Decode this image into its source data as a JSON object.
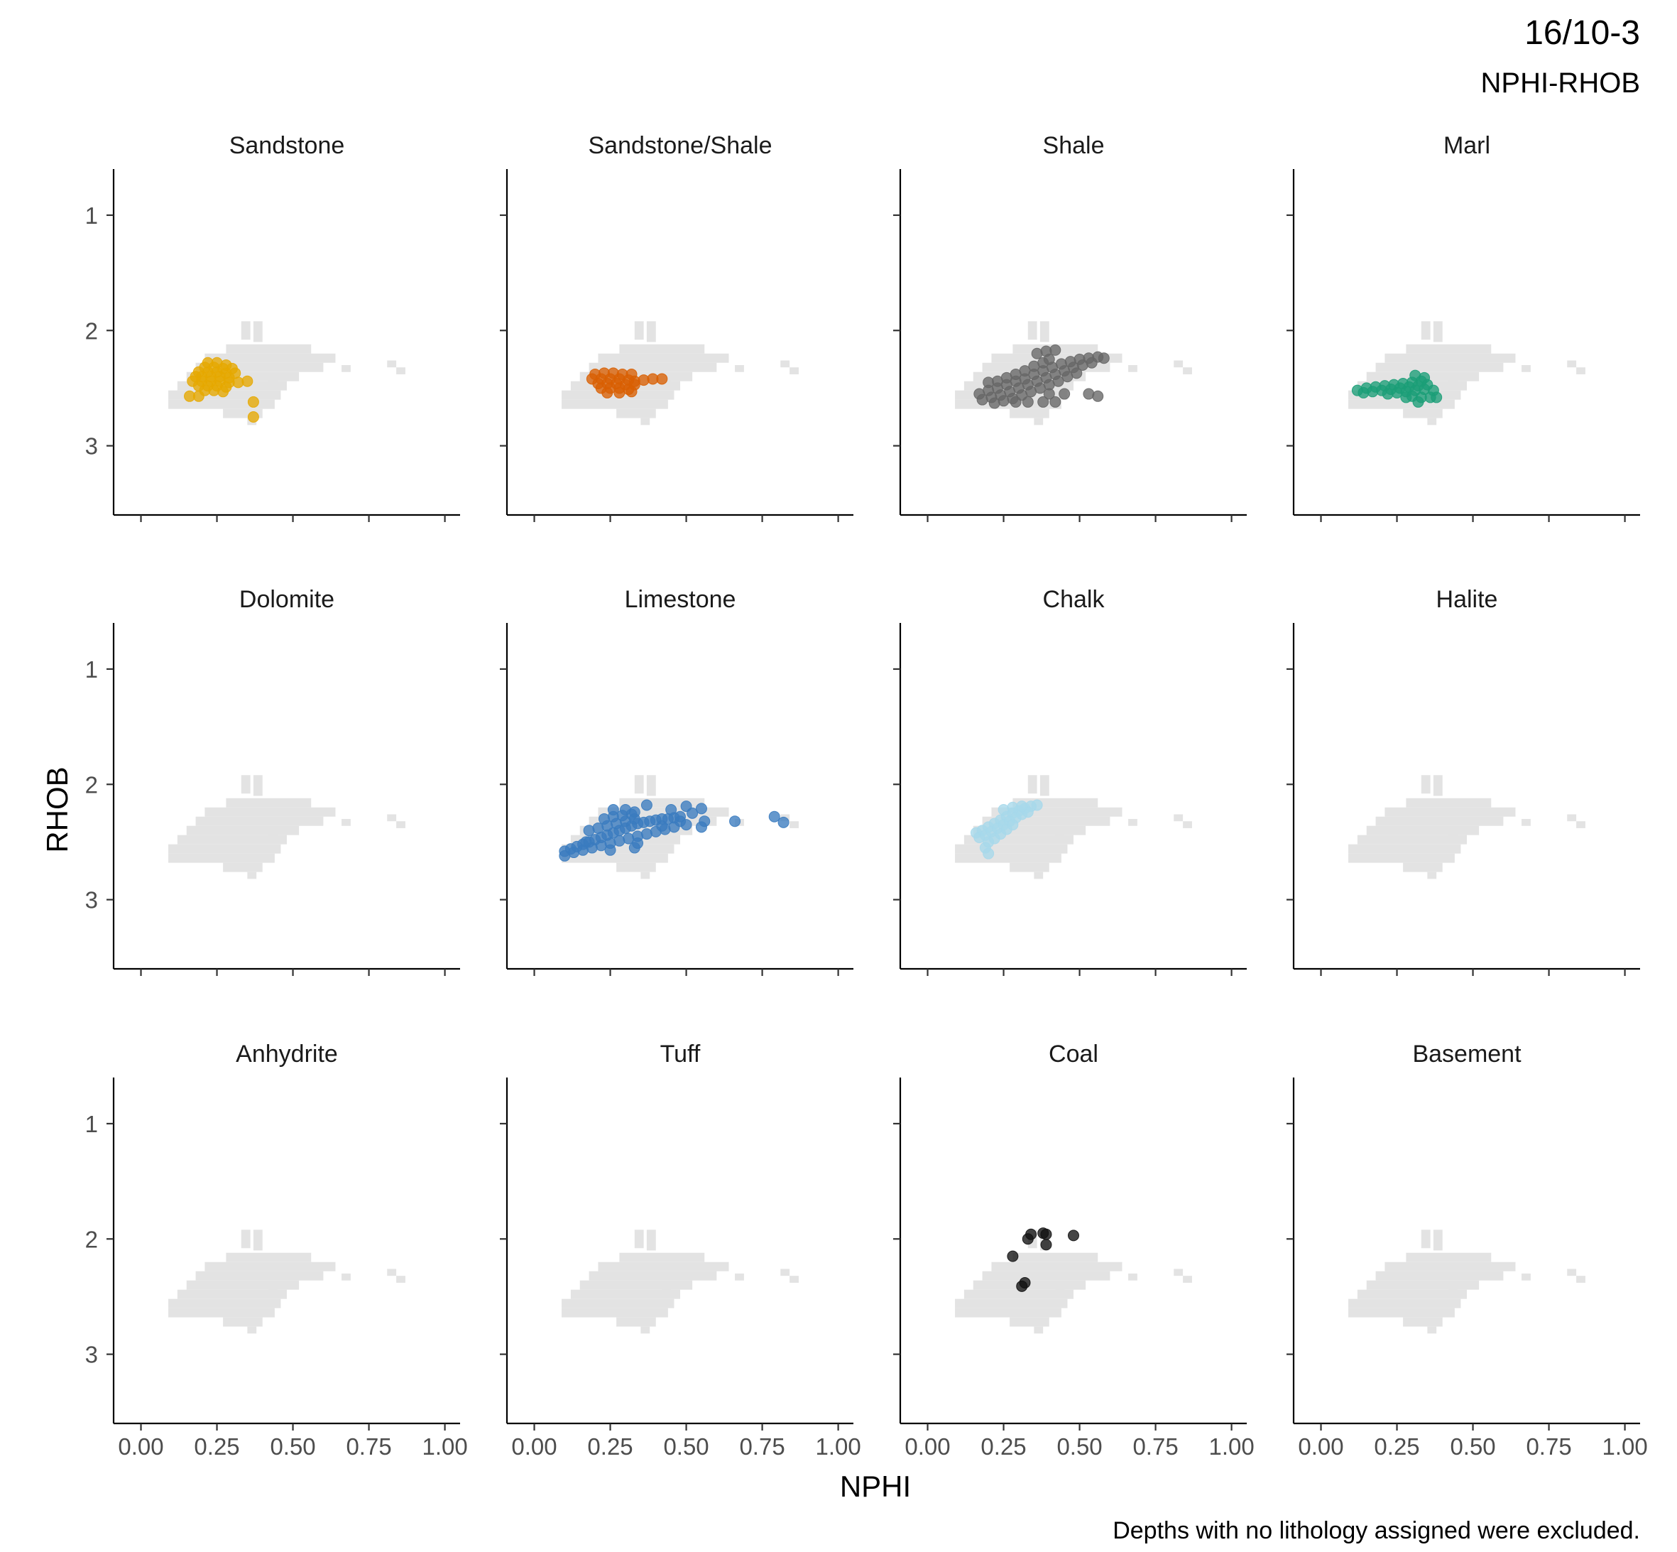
{
  "chart_data": {
    "type": "scatter",
    "title": "16/10-3",
    "subtitle": "NPHI-RHOB",
    "caption": "Depths with no lithology assigned were excluded.",
    "xlabel": "NPHI",
    "ylabel": "RHOB",
    "xlim": [
      -0.09,
      1.05
    ],
    "ylim": [
      3.6,
      0.6
    ],
    "y_reversed": true,
    "x_ticks": [
      0.0,
      0.25,
      0.5,
      0.75,
      1.0
    ],
    "x_tick_labels": [
      "0.00",
      "0.25",
      "0.50",
      "0.75",
      "1.00"
    ],
    "y_ticks": [
      1,
      2,
      3
    ],
    "y_tick_labels": [
      "1",
      "2",
      "3"
    ],
    "grid": false,
    "facets": {
      "rows": 3,
      "cols": 4
    },
    "background_color": "#e3e3e3",
    "background_cloud": {
      "cells": [
        {
          "x": [
            0.33,
            0.36
          ],
          "y": [
            1.92,
            2.08
          ]
        },
        {
          "x": [
            0.37,
            0.4
          ],
          "y": [
            1.92,
            2.1
          ]
        },
        {
          "x": [
            0.28,
            0.56
          ],
          "y": [
            2.12,
            2.2
          ]
        },
        {
          "x": [
            0.21,
            0.64
          ],
          "y": [
            2.2,
            2.28
          ]
        },
        {
          "x": [
            0.18,
            0.6
          ],
          "y": [
            2.28,
            2.36
          ]
        },
        {
          "x": [
            0.15,
            0.52
          ],
          "y": [
            2.36,
            2.44
          ]
        },
        {
          "x": [
            0.12,
            0.48
          ],
          "y": [
            2.44,
            2.52
          ]
        },
        {
          "x": [
            0.09,
            0.46
          ],
          "y": [
            2.52,
            2.6
          ]
        },
        {
          "x": [
            0.09,
            0.44
          ],
          "y": [
            2.6,
            2.68
          ]
        },
        {
          "x": [
            0.27,
            0.4
          ],
          "y": [
            2.68,
            2.76
          ]
        },
        {
          "x": [
            0.35,
            0.38
          ],
          "y": [
            2.76,
            2.82
          ]
        },
        {
          "x": [
            0.42,
            0.45
          ],
          "y": [
            2.42,
            2.48
          ]
        },
        {
          "x": [
            0.66,
            0.69
          ],
          "y": [
            2.3,
            2.36
          ]
        },
        {
          "x": [
            0.81,
            0.84
          ],
          "y": [
            2.26,
            2.32
          ]
        },
        {
          "x": [
            0.84,
            0.87
          ],
          "y": [
            2.32,
            2.38
          ]
        }
      ]
    },
    "panels": [
      {
        "name": "Sandstone",
        "color": "#E6A800",
        "points": [
          [
            0.22,
            2.28
          ],
          [
            0.25,
            2.28
          ],
          [
            0.28,
            2.3
          ],
          [
            0.21,
            2.32
          ],
          [
            0.24,
            2.32
          ],
          [
            0.27,
            2.33
          ],
          [
            0.3,
            2.33
          ],
          [
            0.19,
            2.36
          ],
          [
            0.22,
            2.36
          ],
          [
            0.25,
            2.36
          ],
          [
            0.28,
            2.37
          ],
          [
            0.31,
            2.37
          ],
          [
            0.18,
            2.4
          ],
          [
            0.2,
            2.4
          ],
          [
            0.23,
            2.4
          ],
          [
            0.26,
            2.4
          ],
          [
            0.29,
            2.41
          ],
          [
            0.17,
            2.44
          ],
          [
            0.2,
            2.44
          ],
          [
            0.23,
            2.44
          ],
          [
            0.26,
            2.44
          ],
          [
            0.29,
            2.45
          ],
          [
            0.32,
            2.45
          ],
          [
            0.35,
            2.44
          ],
          [
            0.19,
            2.48
          ],
          [
            0.22,
            2.48
          ],
          [
            0.25,
            2.48
          ],
          [
            0.28,
            2.49
          ],
          [
            0.21,
            2.52
          ],
          [
            0.24,
            2.52
          ],
          [
            0.27,
            2.53
          ],
          [
            0.16,
            2.57
          ],
          [
            0.19,
            2.57
          ],
          [
            0.37,
            2.62
          ],
          [
            0.37,
            2.75
          ]
        ]
      },
      {
        "name": "Sandstone/Shale",
        "color": "#D95F02",
        "points": [
          [
            0.2,
            2.38
          ],
          [
            0.23,
            2.37
          ],
          [
            0.26,
            2.37
          ],
          [
            0.29,
            2.38
          ],
          [
            0.32,
            2.38
          ],
          [
            0.19,
            2.42
          ],
          [
            0.22,
            2.42
          ],
          [
            0.25,
            2.42
          ],
          [
            0.28,
            2.42
          ],
          [
            0.31,
            2.43
          ],
          [
            0.33,
            2.44
          ],
          [
            0.21,
            2.46
          ],
          [
            0.24,
            2.46
          ],
          [
            0.27,
            2.46
          ],
          [
            0.3,
            2.47
          ],
          [
            0.33,
            2.47
          ],
          [
            0.22,
            2.5
          ],
          [
            0.25,
            2.5
          ],
          [
            0.28,
            2.5
          ],
          [
            0.31,
            2.51
          ],
          [
            0.24,
            2.54
          ],
          [
            0.28,
            2.54
          ],
          [
            0.32,
            2.53
          ],
          [
            0.36,
            2.43
          ],
          [
            0.39,
            2.42
          ],
          [
            0.42,
            2.42
          ]
        ]
      },
      {
        "name": "Shale",
        "color": "#666666",
        "points": [
          [
            0.17,
            2.55
          ],
          [
            0.2,
            2.52
          ],
          [
            0.23,
            2.5
          ],
          [
            0.26,
            2.47
          ],
          [
            0.29,
            2.44
          ],
          [
            0.32,
            2.42
          ],
          [
            0.35,
            2.38
          ],
          [
            0.38,
            2.35
          ],
          [
            0.41,
            2.32
          ],
          [
            0.44,
            2.29
          ],
          [
            0.47,
            2.27
          ],
          [
            0.5,
            2.25
          ],
          [
            0.53,
            2.24
          ],
          [
            0.56,
            2.23
          ],
          [
            0.58,
            2.24
          ],
          [
            0.18,
            2.6
          ],
          [
            0.21,
            2.58
          ],
          [
            0.24,
            2.56
          ],
          [
            0.27,
            2.53
          ],
          [
            0.3,
            2.5
          ],
          [
            0.33,
            2.47
          ],
          [
            0.36,
            2.44
          ],
          [
            0.39,
            2.41
          ],
          [
            0.42,
            2.38
          ],
          [
            0.45,
            2.35
          ],
          [
            0.48,
            2.32
          ],
          [
            0.51,
            2.3
          ],
          [
            0.54,
            2.28
          ],
          [
            0.22,
            2.63
          ],
          [
            0.25,
            2.61
          ],
          [
            0.28,
            2.59
          ],
          [
            0.31,
            2.56
          ],
          [
            0.34,
            2.53
          ],
          [
            0.37,
            2.5
          ],
          [
            0.4,
            2.47
          ],
          [
            0.43,
            2.44
          ],
          [
            0.46,
            2.4
          ],
          [
            0.49,
            2.37
          ],
          [
            0.2,
            2.45
          ],
          [
            0.23,
            2.44
          ],
          [
            0.26,
            2.41
          ],
          [
            0.29,
            2.38
          ],
          [
            0.32,
            2.35
          ],
          [
            0.35,
            2.31
          ],
          [
            0.38,
            2.28
          ],
          [
            0.4,
            2.25
          ],
          [
            0.36,
            2.2
          ],
          [
            0.39,
            2.18
          ],
          [
            0.42,
            2.17
          ],
          [
            0.4,
            2.55
          ],
          [
            0.42,
            2.62
          ],
          [
            0.45,
            2.55
          ],
          [
            0.53,
            2.55
          ],
          [
            0.56,
            2.57
          ],
          [
            0.29,
            2.62
          ],
          [
            0.33,
            2.62
          ],
          [
            0.38,
            2.62
          ]
        ]
      },
      {
        "name": "Marl",
        "color": "#1B9E77",
        "points": [
          [
            0.12,
            2.52
          ],
          [
            0.15,
            2.5
          ],
          [
            0.18,
            2.49
          ],
          [
            0.21,
            2.48
          ],
          [
            0.24,
            2.47
          ],
          [
            0.27,
            2.46
          ],
          [
            0.3,
            2.45
          ],
          [
            0.33,
            2.44
          ],
          [
            0.14,
            2.54
          ],
          [
            0.17,
            2.53
          ],
          [
            0.2,
            2.52
          ],
          [
            0.23,
            2.51
          ],
          [
            0.26,
            2.5
          ],
          [
            0.29,
            2.49
          ],
          [
            0.32,
            2.48
          ],
          [
            0.35,
            2.47
          ],
          [
            0.22,
            2.55
          ],
          [
            0.25,
            2.54
          ],
          [
            0.28,
            2.53
          ],
          [
            0.31,
            2.52
          ],
          [
            0.34,
            2.51
          ],
          [
            0.37,
            2.52
          ],
          [
            0.3,
            2.57
          ],
          [
            0.33,
            2.58
          ],
          [
            0.36,
            2.58
          ],
          [
            0.38,
            2.58
          ],
          [
            0.31,
            2.39
          ],
          [
            0.34,
            2.41
          ],
          [
            0.32,
            2.62
          ],
          [
            0.28,
            2.58
          ]
        ]
      },
      {
        "name": "Dolomite",
        "color": "#666666",
        "points": []
      },
      {
        "name": "Limestone",
        "color": "#3A7BBF",
        "points": [
          [
            0.1,
            2.58
          ],
          [
            0.1,
            2.62
          ],
          [
            0.12,
            2.56
          ],
          [
            0.14,
            2.54
          ],
          [
            0.16,
            2.52
          ],
          [
            0.18,
            2.5
          ],
          [
            0.2,
            2.48
          ],
          [
            0.22,
            2.46
          ],
          [
            0.24,
            2.44
          ],
          [
            0.26,
            2.42
          ],
          [
            0.28,
            2.4
          ],
          [
            0.3,
            2.38
          ],
          [
            0.32,
            2.36
          ],
          [
            0.34,
            2.34
          ],
          [
            0.36,
            2.33
          ],
          [
            0.38,
            2.32
          ],
          [
            0.4,
            2.31
          ],
          [
            0.42,
            2.3
          ],
          [
            0.44,
            2.3
          ],
          [
            0.46,
            2.29
          ],
          [
            0.48,
            2.28
          ],
          [
            0.13,
            2.59
          ],
          [
            0.16,
            2.57
          ],
          [
            0.19,
            2.55
          ],
          [
            0.22,
            2.53
          ],
          [
            0.25,
            2.51
          ],
          [
            0.28,
            2.49
          ],
          [
            0.31,
            2.47
          ],
          [
            0.34,
            2.45
          ],
          [
            0.37,
            2.43
          ],
          [
            0.4,
            2.41
          ],
          [
            0.43,
            2.39
          ],
          [
            0.46,
            2.37
          ],
          [
            0.5,
            2.35
          ],
          [
            0.18,
            2.4
          ],
          [
            0.21,
            2.38
          ],
          [
            0.24,
            2.36
          ],
          [
            0.27,
            2.34
          ],
          [
            0.3,
            2.32
          ],
          [
            0.33,
            2.3
          ],
          [
            0.23,
            2.3
          ],
          [
            0.26,
            2.28
          ],
          [
            0.29,
            2.27
          ],
          [
            0.32,
            2.26
          ],
          [
            0.26,
            2.22
          ],
          [
            0.3,
            2.22
          ],
          [
            0.33,
            2.24
          ],
          [
            0.37,
            2.18
          ],
          [
            0.45,
            2.22
          ],
          [
            0.5,
            2.19
          ],
          [
            0.52,
            2.25
          ],
          [
            0.55,
            2.21
          ],
          [
            0.56,
            2.32
          ],
          [
            0.55,
            2.37
          ],
          [
            0.66,
            2.32
          ],
          [
            0.79,
            2.28
          ],
          [
            0.82,
            2.33
          ],
          [
            0.34,
            2.51
          ],
          [
            0.33,
            2.55
          ],
          [
            0.25,
            2.57
          ],
          [
            0.17,
            2.5
          ],
          [
            0.42,
            2.36
          ],
          [
            0.48,
            2.32
          ]
        ]
      },
      {
        "name": "Chalk",
        "color": "#A6D8EB",
        "points": [
          [
            0.16,
            2.42
          ],
          [
            0.18,
            2.4
          ],
          [
            0.2,
            2.37
          ],
          [
            0.22,
            2.34
          ],
          [
            0.24,
            2.31
          ],
          [
            0.26,
            2.28
          ],
          [
            0.28,
            2.25
          ],
          [
            0.3,
            2.23
          ],
          [
            0.32,
            2.21
          ],
          [
            0.34,
            2.19
          ],
          [
            0.36,
            2.18
          ],
          [
            0.17,
            2.46
          ],
          [
            0.19,
            2.44
          ],
          [
            0.21,
            2.41
          ],
          [
            0.23,
            2.38
          ],
          [
            0.25,
            2.35
          ],
          [
            0.27,
            2.32
          ],
          [
            0.29,
            2.29
          ],
          [
            0.31,
            2.26
          ],
          [
            0.33,
            2.24
          ],
          [
            0.25,
            2.22
          ],
          [
            0.28,
            2.2
          ],
          [
            0.31,
            2.19
          ],
          [
            0.2,
            2.5
          ],
          [
            0.19,
            2.55
          ],
          [
            0.2,
            2.6
          ],
          [
            0.22,
            2.47
          ],
          [
            0.24,
            2.43
          ],
          [
            0.26,
            2.39
          ],
          [
            0.28,
            2.35
          ]
        ]
      },
      {
        "name": "Halite",
        "color": "#666666",
        "points": []
      },
      {
        "name": "Anhydrite",
        "color": "#666666",
        "points": []
      },
      {
        "name": "Tuff",
        "color": "#666666",
        "points": []
      },
      {
        "name": "Coal",
        "color": "#111111",
        "points": [
          [
            0.34,
            1.96
          ],
          [
            0.38,
            1.95
          ],
          [
            0.39,
            1.96
          ],
          [
            0.33,
            2.0
          ],
          [
            0.48,
            1.97
          ],
          [
            0.39,
            2.05
          ],
          [
            0.28,
            2.15
          ],
          [
            0.32,
            2.38
          ],
          [
            0.31,
            2.41
          ]
        ]
      },
      {
        "name": "Basement",
        "color": "#666666",
        "points": []
      }
    ]
  }
}
